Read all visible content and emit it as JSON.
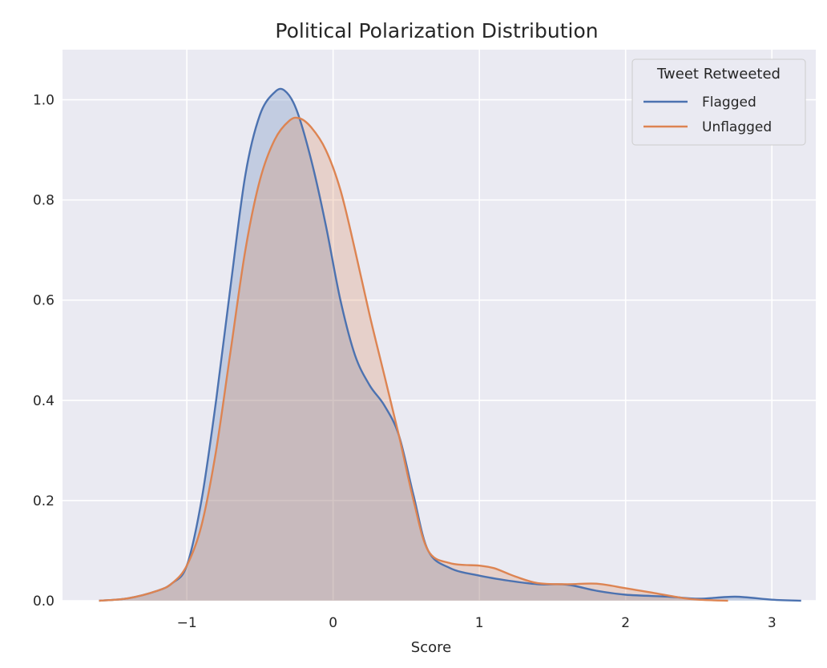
{
  "chart_data": {
    "type": "area",
    "title": "Political Polarization Distribution",
    "xlabel": "Score",
    "ylabel": "",
    "xlim": [
      -1.85,
      3.3
    ],
    "ylim": [
      0,
      1.1
    ],
    "x_ticks": [
      -1,
      0,
      1,
      2,
      3
    ],
    "x_tick_labels": [
      "−1",
      "0",
      "1",
      "2",
      "3"
    ],
    "y_ticks": [
      0.0,
      0.2,
      0.4,
      0.6,
      0.8,
      1.0
    ],
    "y_tick_labels": [
      "0.0",
      "0.2",
      "0.4",
      "0.6",
      "0.8",
      "1.0"
    ],
    "grid": true,
    "legend": {
      "title": "Tweet Retweeted",
      "position": "top-right"
    },
    "series": [
      {
        "name": "Flagged",
        "color": "#4c72b0",
        "points": [
          [
            -1.6,
            0.0
          ],
          [
            -1.4,
            0.005
          ],
          [
            -1.2,
            0.02
          ],
          [
            -1.1,
            0.035
          ],
          [
            -1.0,
            0.07
          ],
          [
            -0.9,
            0.2
          ],
          [
            -0.8,
            0.4
          ],
          [
            -0.7,
            0.63
          ],
          [
            -0.6,
            0.85
          ],
          [
            -0.5,
            0.97
          ],
          [
            -0.4,
            1.015
          ],
          [
            -0.33,
            1.018
          ],
          [
            -0.25,
            0.98
          ],
          [
            -0.15,
            0.88
          ],
          [
            -0.05,
            0.75
          ],
          [
            0.05,
            0.6
          ],
          [
            0.15,
            0.49
          ],
          [
            0.25,
            0.43
          ],
          [
            0.35,
            0.39
          ],
          [
            0.45,
            0.33
          ],
          [
            0.55,
            0.21
          ],
          [
            0.65,
            0.1
          ],
          [
            0.8,
            0.065
          ],
          [
            1.0,
            0.05
          ],
          [
            1.2,
            0.04
          ],
          [
            1.4,
            0.033
          ],
          [
            1.6,
            0.032
          ],
          [
            1.8,
            0.02
          ],
          [
            2.0,
            0.012
          ],
          [
            2.3,
            0.008
          ],
          [
            2.5,
            0.004
          ],
          [
            2.75,
            0.008
          ],
          [
            3.0,
            0.002
          ],
          [
            3.2,
            0.0
          ]
        ]
      },
      {
        "name": "Unflagged",
        "color": "#dd8452",
        "points": [
          [
            -1.6,
            0.0
          ],
          [
            -1.4,
            0.005
          ],
          [
            -1.2,
            0.02
          ],
          [
            -1.1,
            0.035
          ],
          [
            -1.0,
            0.07
          ],
          [
            -0.9,
            0.15
          ],
          [
            -0.8,
            0.3
          ],
          [
            -0.7,
            0.5
          ],
          [
            -0.6,
            0.7
          ],
          [
            -0.5,
            0.84
          ],
          [
            -0.4,
            0.92
          ],
          [
            -0.3,
            0.958
          ],
          [
            -0.23,
            0.963
          ],
          [
            -0.15,
            0.945
          ],
          [
            -0.05,
            0.9
          ],
          [
            0.05,
            0.82
          ],
          [
            0.15,
            0.7
          ],
          [
            0.25,
            0.57
          ],
          [
            0.35,
            0.45
          ],
          [
            0.45,
            0.33
          ],
          [
            0.55,
            0.2
          ],
          [
            0.65,
            0.1
          ],
          [
            0.8,
            0.075
          ],
          [
            1.0,
            0.07
          ],
          [
            1.1,
            0.065
          ],
          [
            1.25,
            0.048
          ],
          [
            1.4,
            0.035
          ],
          [
            1.6,
            0.033
          ],
          [
            1.8,
            0.034
          ],
          [
            2.0,
            0.025
          ],
          [
            2.2,
            0.015
          ],
          [
            2.4,
            0.005
          ],
          [
            2.5,
            0.002
          ],
          [
            2.7,
            0.0
          ]
        ]
      }
    ]
  }
}
